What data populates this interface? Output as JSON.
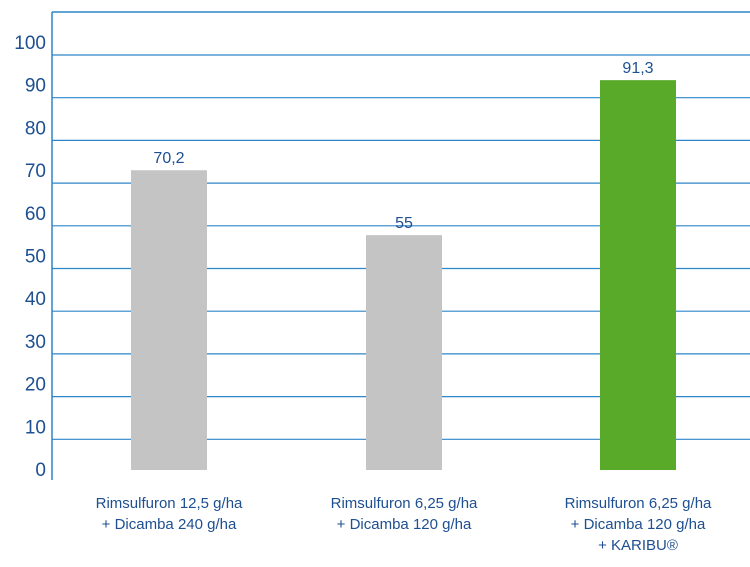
{
  "chart_data": {
    "type": "bar",
    "categories": [
      [
        "Rimsulfuron 12,5 g/ha",
        "+ Dicamba 240 g/ha"
      ],
      [
        "Rimsulfuron 6,25 g/ha",
        "+ Dicamba 120 g/ha"
      ],
      [
        "Rimsulfuron 6,25 g/ha",
        "+ Dicamba 120 g/ha",
        "+ KARIBU®"
      ]
    ],
    "values": [
      70.2,
      55,
      91.3
    ],
    "value_labels": [
      "70,2",
      "55",
      "91,3"
    ],
    "bar_colors": [
      "#c4c4c4",
      "#c4c4c4",
      "#5aaa2a"
    ],
    "ylim": [
      0,
      100
    ],
    "yticks": [
      0,
      10,
      20,
      30,
      40,
      50,
      60,
      70,
      80,
      90,
      100
    ],
    "grid": true,
    "title": "",
    "xlabel": "",
    "ylabel": ""
  },
  "colors": {
    "axis": "#2e86c9",
    "text": "#1d4f91"
  }
}
